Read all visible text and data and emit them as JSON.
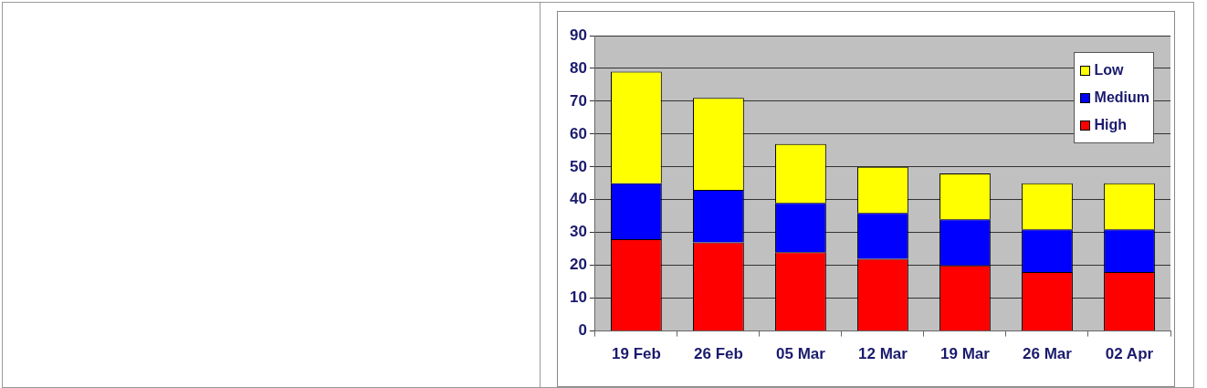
{
  "chart_data": {
    "type": "bar",
    "stacked": true,
    "categories": [
      "19 Feb",
      "26 Feb",
      "05 Mar",
      "12 Mar",
      "19 Mar",
      "26 Mar",
      "02 Apr"
    ],
    "series": [
      {
        "name": "High",
        "color": "#ff0000",
        "values": [
          28,
          27,
          24,
          22,
          20,
          18,
          18
        ]
      },
      {
        "name": "Medium",
        "color": "#0000ff",
        "values": [
          17,
          16,
          15,
          14,
          14,
          13,
          13
        ]
      },
      {
        "name": "Low",
        "color": "#ffff00",
        "values": [
          34,
          28,
          18,
          14,
          14,
          14,
          14
        ]
      }
    ],
    "ylim": [
      0,
      90
    ],
    "yticks": [
      0,
      10,
      20,
      30,
      40,
      50,
      60,
      70,
      80,
      90
    ],
    "grid": "y",
    "legend": "top right"
  }
}
